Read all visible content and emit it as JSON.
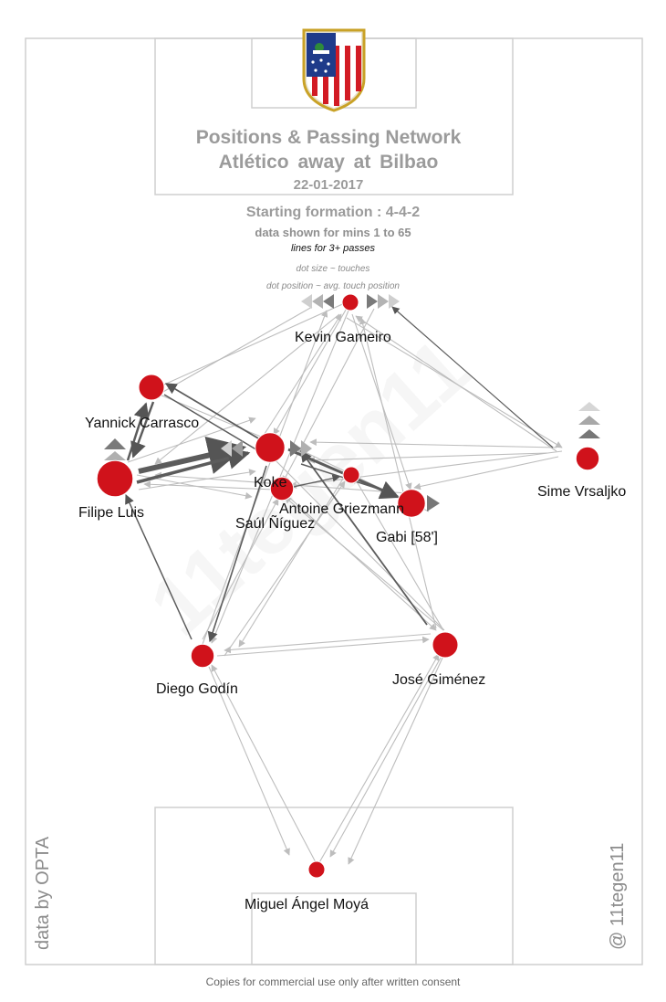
{
  "header": {
    "title": "Positions & Passing Network",
    "subtitle": "Atlético  away at  Bilbao",
    "date": "22-01-2017"
  },
  "info": {
    "formation": "Starting formation : 4-4-2",
    "minutes": "data shown for mins 1 to 65",
    "lines_note": "lines for 3+ passes",
    "size_note": "dot size ~ touches",
    "position_note": "dot position ~ avg. touch position"
  },
  "credits": {
    "source": "data by OPTA",
    "author": "@ 11tegen11",
    "copyright": "Copies for commercial use only after written consent"
  },
  "colors": {
    "player_dot": "#d0121b",
    "pitch_lines": "#cfcfcf",
    "heavy_link": "#555555",
    "light_link": "#bdbdbd"
  },
  "players": [
    {
      "id": "moya",
      "label": "Miguel Ángel Moyá",
      "touches": 1
    },
    {
      "id": "godin",
      "label": "Diego Godín",
      "touches": 3
    },
    {
      "id": "gimenez",
      "label": "José Giménez",
      "touches": 4
    },
    {
      "id": "luis",
      "label": "Filipe Luis",
      "touches": 10
    },
    {
      "id": "vrsaljko",
      "label": "Sime Vrsaljko",
      "touches": 3
    },
    {
      "id": "carrasco",
      "label": "Yannick Carrasco",
      "touches": 4
    },
    {
      "id": "koke",
      "label": "Koke",
      "touches": 6
    },
    {
      "id": "saul",
      "label": "Saúl Ñíguez",
      "touches": 3
    },
    {
      "id": "griezmann",
      "label": "Antoine Griezmann",
      "touches": 1
    },
    {
      "id": "gabi",
      "label": "Gabi [58']",
      "touches": 5
    },
    {
      "id": "gameiro",
      "label": "Kevin Gameiro",
      "touches": 1
    }
  ]
}
